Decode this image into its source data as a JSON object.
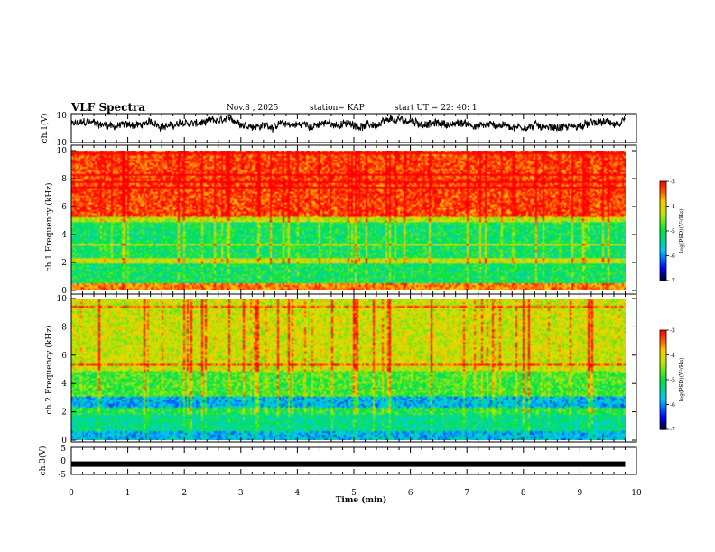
{
  "header": {
    "title": "VLF Spectra",
    "date": "Nov.8 , 2025",
    "station": "station= KAP",
    "start": "start UT = 22: 40: 1"
  },
  "chart_data": [
    {
      "type": "line",
      "name": "ch1-waveform",
      "ylabel": "ch.1(V)",
      "ylim": [
        -10,
        10
      ],
      "yticks": [
        "10",
        "-10"
      ],
      "description": "continuous noisy voltage trace around 0 to 5 V"
    },
    {
      "type": "heatmap",
      "name": "ch1-spectrogram",
      "ylabel": "ch.1 Frequency (kHz)",
      "ylim": [
        0,
        10
      ],
      "yticks": [
        "10",
        "8",
        "6",
        "4",
        "2",
        "0"
      ],
      "colorbar": {
        "label": "log(PSD)(V²/Hz)",
        "range": [
          -7,
          -3
        ],
        "ticks": [
          "-3",
          "-4",
          "-5",
          "-6",
          "-7"
        ]
      },
      "bands_khz": [
        {
          "from": 0,
          "to": 0.6,
          "level": -3.6
        },
        {
          "from": 0.6,
          "to": 2.0,
          "level": -5.1
        },
        {
          "from": 2.0,
          "to": 2.4,
          "level": -4.2
        },
        {
          "from": 2.4,
          "to": 4.9,
          "level": -5.1
        },
        {
          "from": 4.9,
          "to": 5.3,
          "level": -4.3
        },
        {
          "from": 5.3,
          "to": 10,
          "level": -3.3
        }
      ]
    },
    {
      "type": "heatmap",
      "name": "ch2-spectrogram",
      "ylabel": "ch.2 Frequency (kHz)",
      "ylim": [
        0,
        10
      ],
      "yticks": [
        "10",
        "8",
        "6",
        "4",
        "2",
        "0"
      ],
      "colorbar": {
        "label": "log(PSD)(V²/Hz)",
        "range": [
          -7,
          -3
        ],
        "ticks": [
          "-3",
          "-4",
          "-5",
          "-6",
          "-7"
        ]
      },
      "bands_khz": [
        {
          "from": 0,
          "to": 0.7,
          "level": -5.8
        },
        {
          "from": 0.7,
          "to": 1.9,
          "level": -5.3
        },
        {
          "from": 1.9,
          "to": 2.4,
          "level": -5.0
        },
        {
          "from": 2.4,
          "to": 3.2,
          "level": -5.8
        },
        {
          "from": 3.2,
          "to": 5.0,
          "level": -4.8
        },
        {
          "from": 5.0,
          "to": 10,
          "level": -4.2
        }
      ]
    },
    {
      "type": "line",
      "name": "ch3-signal",
      "ylabel": "ch.3(V)",
      "ylim": [
        -5,
        5
      ],
      "yticks": [
        "5",
        "0",
        "-5"
      ],
      "level_v": -1.2
    }
  ],
  "xaxis": {
    "label": "Time (min)",
    "range": [
      0,
      10
    ],
    "data_end": 9.8,
    "ticks": [
      "0",
      "1",
      "2",
      "3",
      "4",
      "5",
      "6",
      "7",
      "8",
      "9",
      "10"
    ]
  },
  "colors": {
    "axis": "#000000",
    "trace": "#000000"
  }
}
